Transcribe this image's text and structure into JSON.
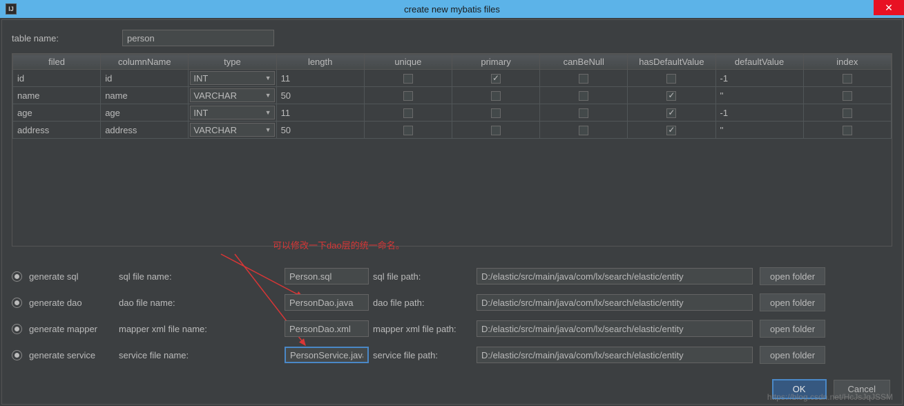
{
  "titlebar": {
    "title": "create new mybatis files",
    "icon_label": "IJ"
  },
  "tableName": {
    "label": "table name:",
    "value": "person"
  },
  "headers": [
    "filed",
    "columnName",
    "type",
    "length",
    "unique",
    "primary",
    "canBeNull",
    "hasDefaultValue",
    "defaultValue",
    "index"
  ],
  "rows": [
    {
      "field": "id",
      "col": "id",
      "type": "INT",
      "len": "11",
      "unique": false,
      "primary": true,
      "canBeNull": false,
      "hasDefault": false,
      "defaultVal": "-1",
      "index": false
    },
    {
      "field": "name",
      "col": "name",
      "type": "VARCHAR",
      "len": "50",
      "unique": false,
      "primary": false,
      "canBeNull": false,
      "hasDefault": true,
      "defaultVal": "''",
      "index": false
    },
    {
      "field": "age",
      "col": "age",
      "type": "INT",
      "len": "11",
      "unique": false,
      "primary": false,
      "canBeNull": false,
      "hasDefault": true,
      "defaultVal": "-1",
      "index": false
    },
    {
      "field": "address",
      "col": "address",
      "type": "VARCHAR",
      "len": "50",
      "unique": false,
      "primary": false,
      "canBeNull": false,
      "hasDefault": true,
      "defaultVal": "''",
      "index": false
    }
  ],
  "annotation": "可以修改一下dao层的统一命名。",
  "gen": {
    "sql": {
      "radio": "generate sql",
      "fileLabel": "sql file name:",
      "fileName": "Person.sql",
      "pathLabel": "sql file path:",
      "path": "D:/elastic/src/main/java/com/lx/search/elastic/entity",
      "btn": "open folder"
    },
    "dao": {
      "radio": "generate dao",
      "fileLabel": "dao file name:",
      "fileName": "PersonDao.java",
      "pathLabel": "dao file path:",
      "path": "D:/elastic/src/main/java/com/lx/search/elastic/entity",
      "btn": "open folder"
    },
    "mapper": {
      "radio": "generate mapper",
      "fileLabel": "mapper xml file name:",
      "fileName": "PersonDao.xml",
      "pathLabel": "mapper xml file path:",
      "path": "D:/elastic/src/main/java/com/lx/search/elastic/entity",
      "btn": "open folder"
    },
    "service": {
      "radio": "generate service",
      "fileLabel": "service file name:",
      "fileName": "PersonService.java",
      "pathLabel": "service file path:",
      "path": "D:/elastic/src/main/java/com/lx/search/elastic/entity",
      "btn": "open folder"
    }
  },
  "buttons": {
    "ok": "OK",
    "cancel": "Cancel"
  },
  "watermark": "https://blog.csdn.net/HcJsJqJSSM",
  "colors": {
    "annotation": "#d93636",
    "titlebar": "#5cb3e8",
    "focus": "#4a88c7"
  }
}
